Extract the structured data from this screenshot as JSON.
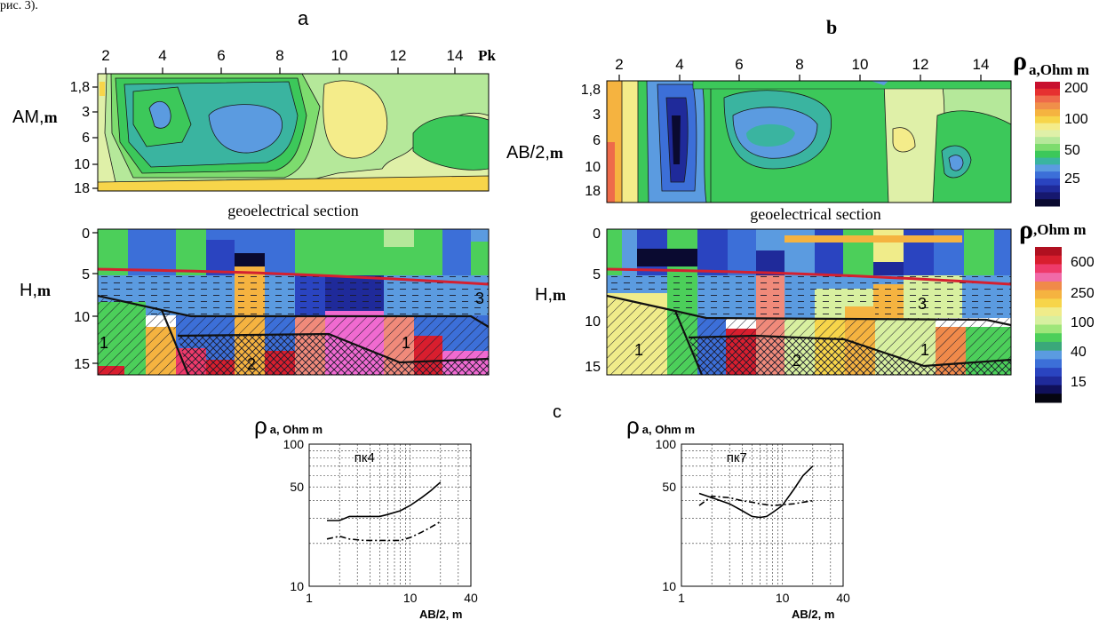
{
  "top_fragment": "рис. 3).",
  "panel_a": {
    "letter": "a",
    "x_ticks": [
      "2",
      "4",
      "6",
      "8",
      "10",
      "12",
      "14"
    ],
    "x_unit": "Pk",
    "pseudo": {
      "ylabel": "AM,",
      "ylabel_unit": "m",
      "y_ticks": [
        "1,8",
        "3",
        "6",
        "10",
        "18"
      ]
    },
    "section_title": "geoelectrical section",
    "section": {
      "ylabel": "H,",
      "ylabel_unit": "m",
      "y_ticks": [
        "0",
        "5",
        "10",
        "15"
      ],
      "labels": [
        "1",
        "2",
        "1",
        "3"
      ]
    }
  },
  "panel_b": {
    "letter": "b",
    "x_ticks": [
      "2",
      "4",
      "6",
      "8",
      "10",
      "12",
      "14"
    ],
    "pseudo": {
      "ylabel": "AB/2,",
      "ylabel_unit": "m",
      "y_ticks": [
        "1,8",
        "3",
        "6",
        "10",
        "18"
      ]
    },
    "section_title": "geoelectrical section",
    "section": {
      "ylabel": "H,",
      "ylabel_unit": "m",
      "y_ticks": [
        "0",
        "5",
        "10",
        "15"
      ],
      "labels": [
        "1",
        "2",
        "1",
        "3"
      ]
    }
  },
  "legend_top": {
    "symbol": "ρ",
    "sub": "a,",
    "unit": "Ohm m",
    "ticks": [
      "200",
      "100",
      "50",
      "25"
    ],
    "colors": [
      "#c8102e",
      "#e63030",
      "#ee6a4a",
      "#f08f4a",
      "#f5b340",
      "#f7d54a",
      "#f4ec8a",
      "#dff0a8",
      "#b5e89a",
      "#7ddc6e",
      "#3cc85a",
      "#3ab4a0",
      "#5b9be0",
      "#3c6fd8",
      "#2a44c0",
      "#1f2a9a",
      "#16186e",
      "#0a0a30"
    ]
  },
  "legend_bottom": {
    "symbol": "ρ",
    "sub": ",",
    "unit": "Ohm m",
    "ticks": [
      "600",
      "250",
      "100",
      "40",
      "15"
    ],
    "colors": [
      "#b01020",
      "#d81e2e",
      "#ee3a6a",
      "#f06aa8",
      "#f08a4a",
      "#f5b340",
      "#f7d54a",
      "#f0ec8a",
      "#d8f0a0",
      "#9fe67a",
      "#4ccf5a",
      "#3aa87a",
      "#5b9be0",
      "#3c6fd8",
      "#2a44c0",
      "#1f2a9a",
      "#10105a",
      "#050510"
    ]
  },
  "panel_c_letter": "c",
  "vez_charts": [
    {
      "title": "пк4",
      "ylabel_symbol": "ρ",
      "ylabel_sub": "a, Ohm m",
      "xlabel": "AB/2, m",
      "y_ticks": [
        "100",
        "50",
        "10"
      ],
      "x_ticks": [
        "1",
        "10",
        "40"
      ]
    },
    {
      "title": "пк7",
      "ylabel_symbol": "ρ",
      "ylabel_sub": "a, Ohm m",
      "xlabel": "AB/2, m",
      "y_ticks": [
        "100",
        "50",
        "10"
      ],
      "x_ticks": [
        "1",
        "10",
        "40"
      ]
    }
  ],
  "chart_data": [
    {
      "type": "line",
      "title": "пк4",
      "xlabel": "AB/2, m",
      "ylabel": "ρa, Ohm m",
      "x_scale": "log",
      "y_scale": "log",
      "xlim": [
        1,
        40
      ],
      "ylim": [
        10,
        100
      ],
      "grid": true,
      "series": [
        {
          "style": "solid",
          "x": [
            1.5,
            2.0,
            2.5,
            3.5,
            5.0,
            6.0,
            8.0,
            10.0,
            13.0,
            16.0,
            20.0
          ],
          "y": [
            29,
            29,
            31,
            31,
            31,
            32,
            34,
            37,
            42,
            47,
            54
          ]
        },
        {
          "style": "dash-dot",
          "x": [
            1.5,
            2.0,
            2.5,
            3.5,
            5.0,
            6.0,
            8.0,
            10.0,
            13.0,
            16.0,
            20.0
          ],
          "y": [
            21.5,
            22.5,
            21.5,
            21,
            21,
            21,
            21,
            22,
            24,
            26,
            28.5
          ]
        }
      ]
    },
    {
      "type": "line",
      "title": "пк7",
      "xlabel": "AB/2, m",
      "ylabel": "ρa, Ohm m",
      "x_scale": "log",
      "y_scale": "log",
      "xlim": [
        1,
        40
      ],
      "ylim": [
        10,
        100
      ],
      "grid": true,
      "series": [
        {
          "style": "solid",
          "x": [
            1.5,
            2.0,
            3.0,
            4.0,
            5.0,
            6.0,
            7.0,
            8.0,
            10.0,
            13.0,
            16.0,
            20.0
          ],
          "y": [
            45,
            42,
            38,
            34,
            31,
            30.5,
            31,
            33,
            37,
            48,
            60,
            70
          ]
        },
        {
          "style": "dash-dot",
          "x": [
            1.5,
            2.0,
            3.0,
            4.0,
            5.0,
            6.0,
            7.0,
            8.0,
            10.0,
            13.0,
            16.0,
            20.0
          ],
          "y": [
            37,
            43,
            42,
            40,
            39,
            38,
            37.5,
            37,
            37.5,
            38,
            39,
            40
          ]
        }
      ]
    }
  ]
}
